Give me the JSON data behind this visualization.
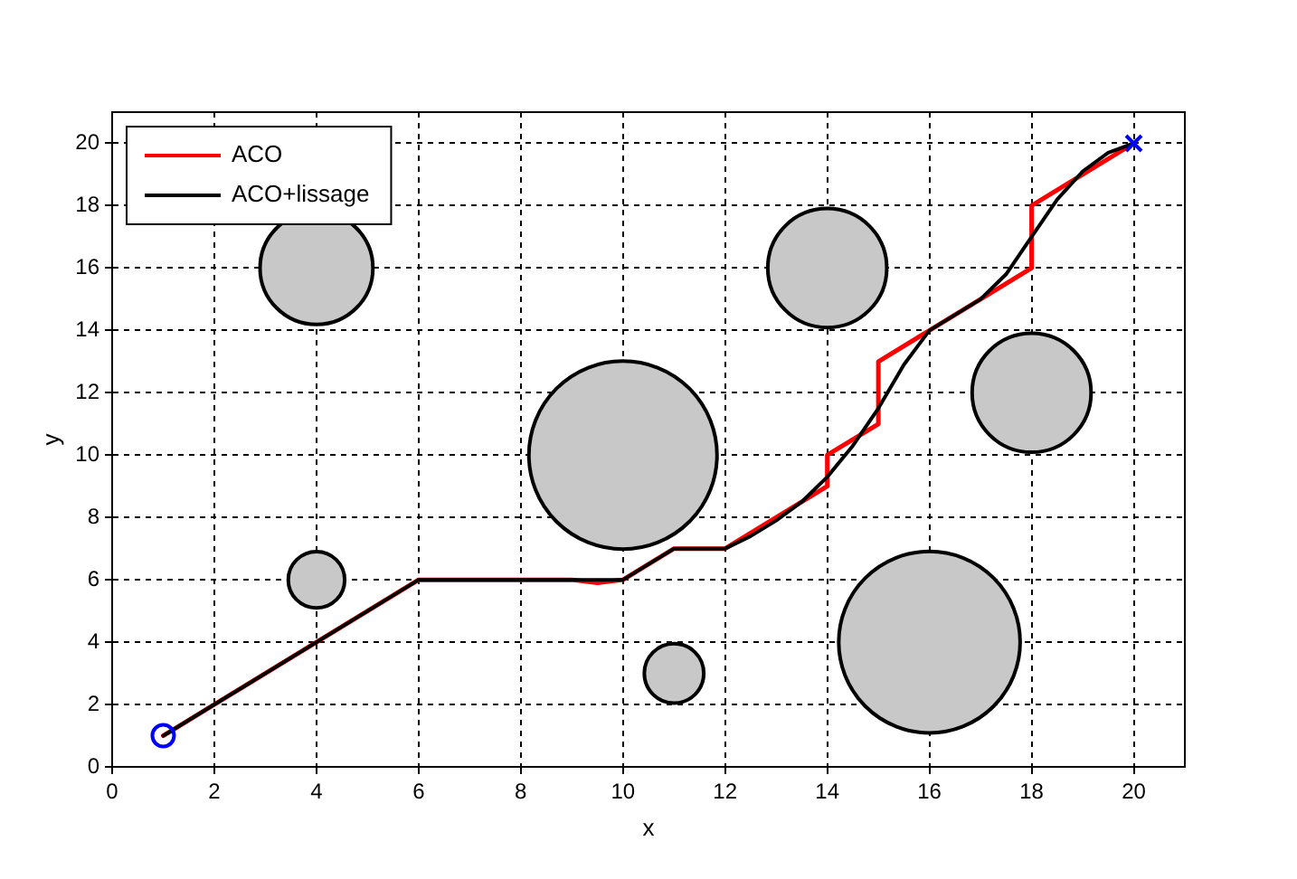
{
  "chart_data": {
    "type": "line",
    "xlabel": "x",
    "ylabel": "y",
    "xlim": [
      0,
      21
    ],
    "ylim": [
      0,
      21
    ],
    "xticks": [
      0,
      2,
      4,
      6,
      8,
      10,
      12,
      14,
      16,
      18,
      20
    ],
    "yticks": [
      0,
      2,
      4,
      6,
      8,
      10,
      12,
      14,
      16,
      18,
      20
    ],
    "grid": true,
    "legend": "top left",
    "line_style": "solid",
    "series": [
      {
        "type": "bubble",
        "color": "#c8c8c8",
        "x": [
          4,
          14,
          10,
          18,
          4,
          11,
          16
        ],
        "values": [
          16,
          16,
          10,
          12,
          6,
          3,
          4
        ],
        "sizes": [
          0.36,
          0.4,
          1,
          0.4,
          0.09,
          0.1,
          0.93
        ]
      },
      {
        "name": "ACO",
        "color": "#ff0000",
        "marker": "none",
        "x": [
          1,
          6,
          9,
          9.5,
          10,
          11,
          12,
          13,
          14,
          14,
          15,
          15,
          16,
          17,
          18,
          18,
          20
        ],
        "values": [
          1,
          6,
          6,
          5.9,
          6,
          7,
          7,
          8,
          9,
          10,
          11,
          13,
          14,
          15,
          16,
          18,
          20
        ]
      },
      {
        "name": "ACO+lissage",
        "color": "#000000",
        "marker": "none",
        "x": [
          1,
          6,
          10,
          11,
          12,
          12.5,
          13,
          13.5,
          14,
          14.5,
          15,
          15.5,
          16,
          16.5,
          17,
          17.5,
          18,
          18.5,
          19,
          19.5,
          20
        ],
        "values": [
          1,
          6,
          6,
          7,
          7,
          7.4,
          7.9,
          8.5,
          9.3,
          10.3,
          11.5,
          12.9,
          14,
          14.5,
          15,
          15.8,
          17,
          18.2,
          19.1,
          19.7,
          20
        ]
      },
      {
        "type": "scatter",
        "color": "#0000ff",
        "marker": "circle",
        "x": [
          1
        ],
        "values": [
          1
        ]
      },
      {
        "type": "scatter",
        "color": "#0000ff",
        "marker": "cross",
        "x": [
          20
        ],
        "values": [
          20
        ]
      }
    ]
  }
}
